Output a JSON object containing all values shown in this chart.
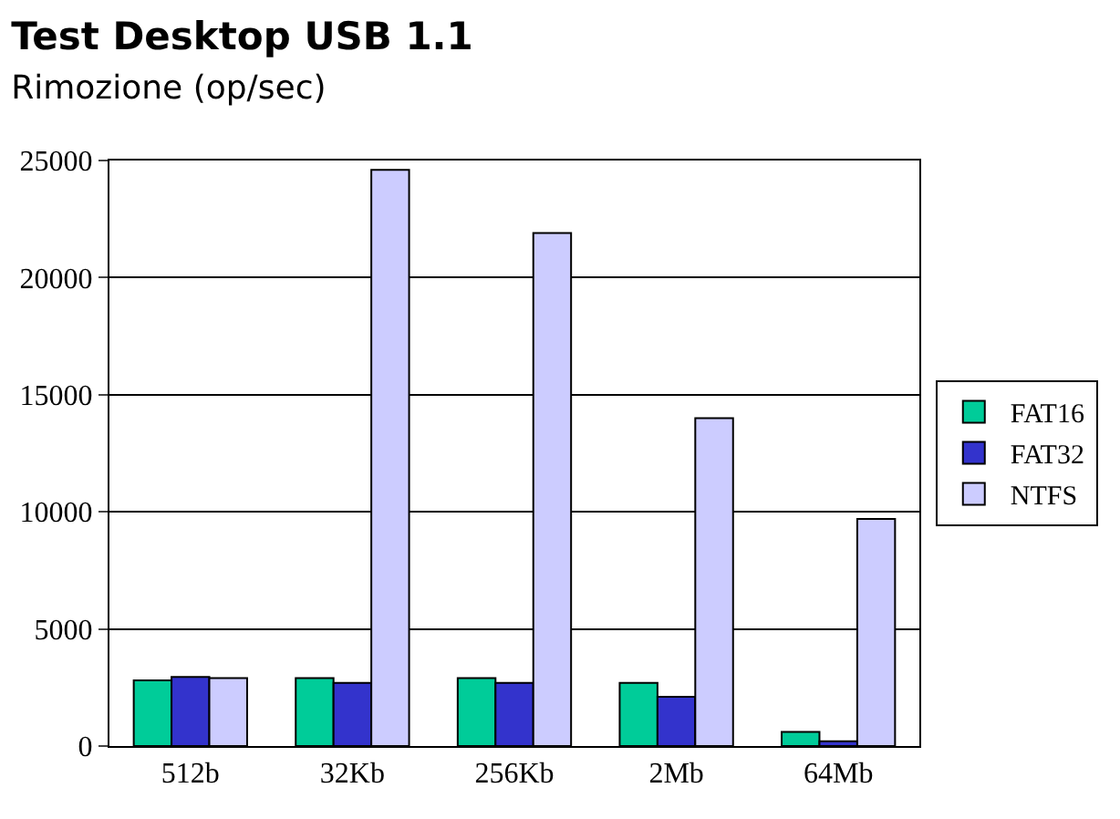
{
  "chart_data": {
    "type": "bar",
    "title": "Test Desktop USB 1.1",
    "subtitle": "Rimozione (op/sec)",
    "categories": [
      "512b",
      "32Kb",
      "256Kb",
      "2Mb",
      "64Mb"
    ],
    "series": [
      {
        "name": "FAT16",
        "color": "#00cc99",
        "values": [
          2800,
          2900,
          2900,
          2700,
          600
        ]
      },
      {
        "name": "FAT32",
        "color": "#3333cc",
        "values": [
          2950,
          2700,
          2700,
          2100,
          200
        ]
      },
      {
        "name": "NTFS",
        "color": "#ccccff",
        "values": [
          2900,
          24600,
          21900,
          14000,
          9700
        ]
      }
    ],
    "ylim": [
      0,
      25000
    ],
    "yticks": [
      0,
      5000,
      10000,
      15000,
      20000,
      25000
    ],
    "grid": "y",
    "legend": "right"
  }
}
